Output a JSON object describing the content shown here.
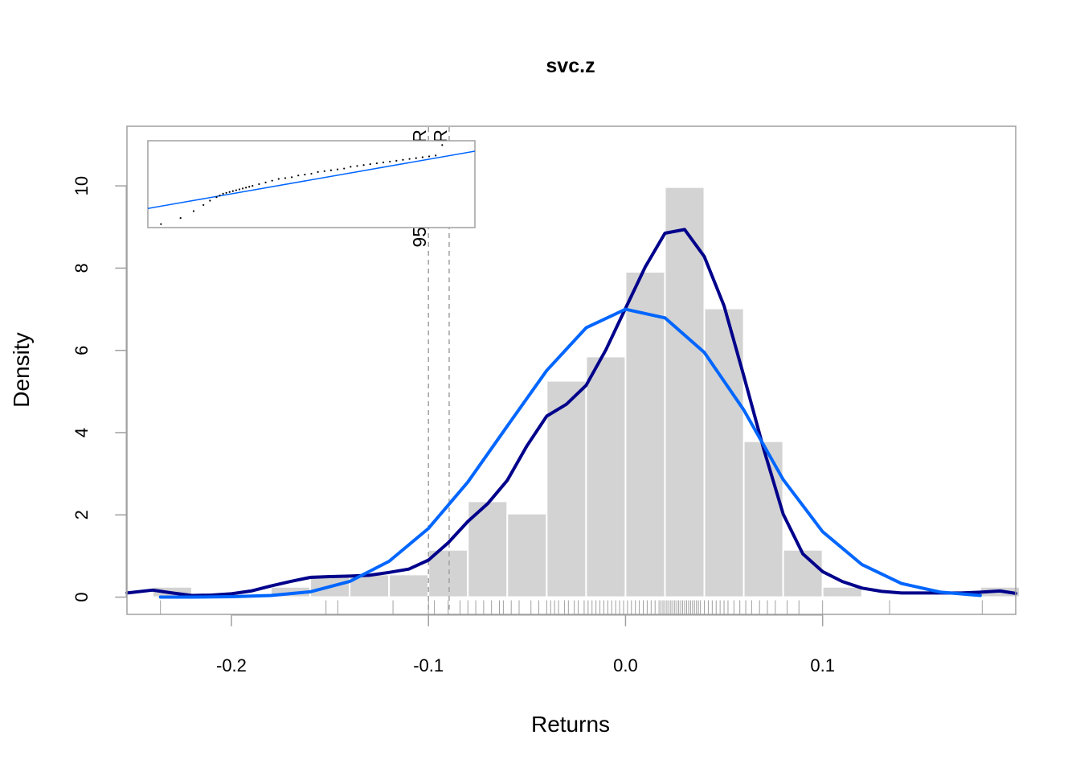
{
  "chart_data": {
    "type": "bar",
    "title": "svc.z",
    "xlabel": "Returns",
    "ylabel": "Density",
    "xlim": [
      -0.253,
      0.198
    ],
    "ylim": [
      -0.42,
      11.45
    ],
    "x_ticks": [
      -0.2,
      -0.1,
      0.0,
      0.1
    ],
    "x_tick_labels": [
      "-0.2",
      "-0.1",
      "0.0",
      "0.1"
    ],
    "y_ticks": [
      0,
      2,
      4,
      6,
      8,
      10
    ],
    "y_tick_labels": [
      "0",
      "2",
      "4",
      "6",
      "8",
      "10"
    ],
    "colors": {
      "histogram": "#d3d3d3",
      "density": "#00008b",
      "normal": "#0066ff",
      "rug": "#a0a0a0",
      "var_line": "#a0a0a0",
      "frame": "#a0a0a0"
    },
    "histogram": {
      "bin_width": 0.02,
      "bins": [
        {
          "x0": -0.24,
          "x1": -0.22,
          "density": 0.25
        },
        {
          "x0": -0.22,
          "x1": -0.2,
          "density": 0.0
        },
        {
          "x0": -0.2,
          "x1": -0.18,
          "density": 0.0
        },
        {
          "x0": -0.18,
          "x1": -0.16,
          "density": 0.25
        },
        {
          "x0": -0.16,
          "x1": -0.14,
          "density": 0.55
        },
        {
          "x0": -0.14,
          "x1": -0.12,
          "density": 0.55
        },
        {
          "x0": -0.12,
          "x1": -0.1,
          "density": 0.55
        },
        {
          "x0": -0.1,
          "x1": -0.08,
          "density": 1.15
        },
        {
          "x0": -0.08,
          "x1": -0.06,
          "density": 2.33
        },
        {
          "x0": -0.06,
          "x1": -0.04,
          "density": 2.03
        },
        {
          "x0": -0.04,
          "x1": -0.02,
          "density": 5.26
        },
        {
          "x0": -0.02,
          "x1": 0.0,
          "density": 5.85
        },
        {
          "x0": 0.0,
          "x1": 0.02,
          "density": 7.91
        },
        {
          "x0": 0.02,
          "x1": 0.04,
          "density": 9.97
        },
        {
          "x0": 0.04,
          "x1": 0.06,
          "density": 7.02
        },
        {
          "x0": 0.06,
          "x1": 0.08,
          "density": 3.79
        },
        {
          "x0": 0.08,
          "x1": 0.1,
          "density": 1.15
        },
        {
          "x0": 0.1,
          "x1": 0.12,
          "density": 0.25
        },
        {
          "x0": 0.12,
          "x1": 0.14,
          "density": 0.0
        },
        {
          "x0": 0.14,
          "x1": 0.16,
          "density": 0.0
        },
        {
          "x0": 0.16,
          "x1": 0.18,
          "density": 0.0
        },
        {
          "x0": 0.18,
          "x1": 0.2,
          "density": 0.25
        }
      ]
    },
    "series": [
      {
        "type": "line",
        "key": "density",
        "x": [
          -0.253,
          -0.24,
          -0.23,
          -0.22,
          -0.21,
          -0.2,
          -0.19,
          -0.18,
          -0.17,
          -0.16,
          -0.15,
          -0.14,
          -0.13,
          -0.12,
          -0.11,
          -0.1,
          -0.09,
          -0.08,
          -0.07,
          -0.06,
          -0.05,
          -0.04,
          -0.03,
          -0.02,
          -0.01,
          0.0,
          0.01,
          0.02,
          0.03,
          0.04,
          0.05,
          0.06,
          0.07,
          0.08,
          0.09,
          0.1,
          0.11,
          0.12,
          0.13,
          0.14,
          0.15,
          0.16,
          0.17,
          0.18,
          0.19,
          0.198
        ],
        "y": [
          0.1,
          0.17,
          0.1,
          0.04,
          0.05,
          0.08,
          0.15,
          0.27,
          0.38,
          0.48,
          0.5,
          0.51,
          0.53,
          0.6,
          0.68,
          0.9,
          1.32,
          1.84,
          2.27,
          2.84,
          3.68,
          4.4,
          4.69,
          5.15,
          6.01,
          7.02,
          8.03,
          8.85,
          8.94,
          8.28,
          7.08,
          5.38,
          3.62,
          2.02,
          1.05,
          0.62,
          0.38,
          0.22,
          0.14,
          0.1,
          0.1,
          0.1,
          0.1,
          0.12,
          0.15,
          0.09
        ]
      },
      {
        "type": "line",
        "key": "normal",
        "x": [
          -0.236,
          -0.22,
          -0.2,
          -0.18,
          -0.16,
          -0.14,
          -0.12,
          -0.1,
          -0.08,
          -0.06,
          -0.04,
          -0.02,
          0.0,
          0.02,
          0.04,
          0.06,
          0.08,
          0.1,
          0.12,
          0.14,
          0.16,
          0.18
        ],
        "y": [
          0.0,
          0.0,
          0.01,
          0.04,
          0.13,
          0.38,
          0.87,
          1.67,
          2.8,
          4.16,
          5.51,
          6.55,
          7.0,
          6.79,
          5.95,
          4.55,
          2.86,
          1.59,
          0.79,
          0.33,
          0.12,
          0.04
        ]
      }
    ],
    "rug": [
      -0.236,
      -0.152,
      -0.146,
      -0.118,
      -0.1,
      -0.097,
      -0.09,
      -0.084,
      -0.08,
      -0.076,
      -0.072,
      -0.068,
      -0.064,
      -0.062,
      -0.058,
      -0.054,
      -0.048,
      -0.044,
      -0.04,
      -0.038,
      -0.036,
      -0.034,
      -0.031,
      -0.029,
      -0.026,
      -0.024,
      -0.021,
      -0.019,
      -0.017,
      -0.015,
      -0.013,
      -0.011,
      -0.009,
      -0.007,
      -0.005,
      -0.003,
      -0.001,
      0.001,
      0.003,
      0.005,
      0.007,
      0.009,
      0.011,
      0.013,
      0.015,
      0.017,
      0.018,
      0.019,
      0.02,
      0.021,
      0.022,
      0.023,
      0.024,
      0.025,
      0.026,
      0.027,
      0.028,
      0.029,
      0.03,
      0.031,
      0.032,
      0.033,
      0.034,
      0.035,
      0.036,
      0.037,
      0.038,
      0.04,
      0.042,
      0.044,
      0.046,
      0.048,
      0.05,
      0.052,
      0.055,
      0.058,
      0.061,
      0.064,
      0.068,
      0.072,
      0.076,
      0.082,
      0.088,
      0.1,
      0.134,
      0.181
    ],
    "var_lines": [
      {
        "label": "95 % ModVaR",
        "x": -0.1
      },
      {
        "label": "95% VaR",
        "x": -0.0895
      }
    ],
    "inset": {
      "type": "scatter",
      "description": "normal QQ",
      "ref_line": {
        "x": [
          0,
          1
        ],
        "y": [
          0.22,
          0.88
        ]
      },
      "points_x": [
        0.04,
        0.1,
        0.14,
        0.17,
        0.19,
        0.21,
        0.22,
        0.23,
        0.24,
        0.25,
        0.26,
        0.27,
        0.28,
        0.29,
        0.3,
        0.31,
        0.32,
        0.34,
        0.36,
        0.38,
        0.4,
        0.42,
        0.44,
        0.46,
        0.48,
        0.5,
        0.52,
        0.54,
        0.56,
        0.58,
        0.6,
        0.62,
        0.64,
        0.66,
        0.68,
        0.7,
        0.72,
        0.74,
        0.76,
        0.78,
        0.8,
        0.82,
        0.84,
        0.86,
        0.88,
        0.9
      ],
      "points_y": [
        0.04,
        0.11,
        0.19,
        0.26,
        0.31,
        0.35,
        0.37,
        0.39,
        0.4,
        0.41,
        0.42,
        0.43,
        0.44,
        0.45,
        0.46,
        0.47,
        0.48,
        0.5,
        0.52,
        0.54,
        0.56,
        0.57,
        0.58,
        0.6,
        0.61,
        0.62,
        0.64,
        0.65,
        0.66,
        0.67,
        0.68,
        0.7,
        0.71,
        0.72,
        0.73,
        0.74,
        0.75,
        0.76,
        0.77,
        0.78,
        0.79,
        0.8,
        0.81,
        0.82,
        0.83,
        0.95
      ]
    }
  }
}
